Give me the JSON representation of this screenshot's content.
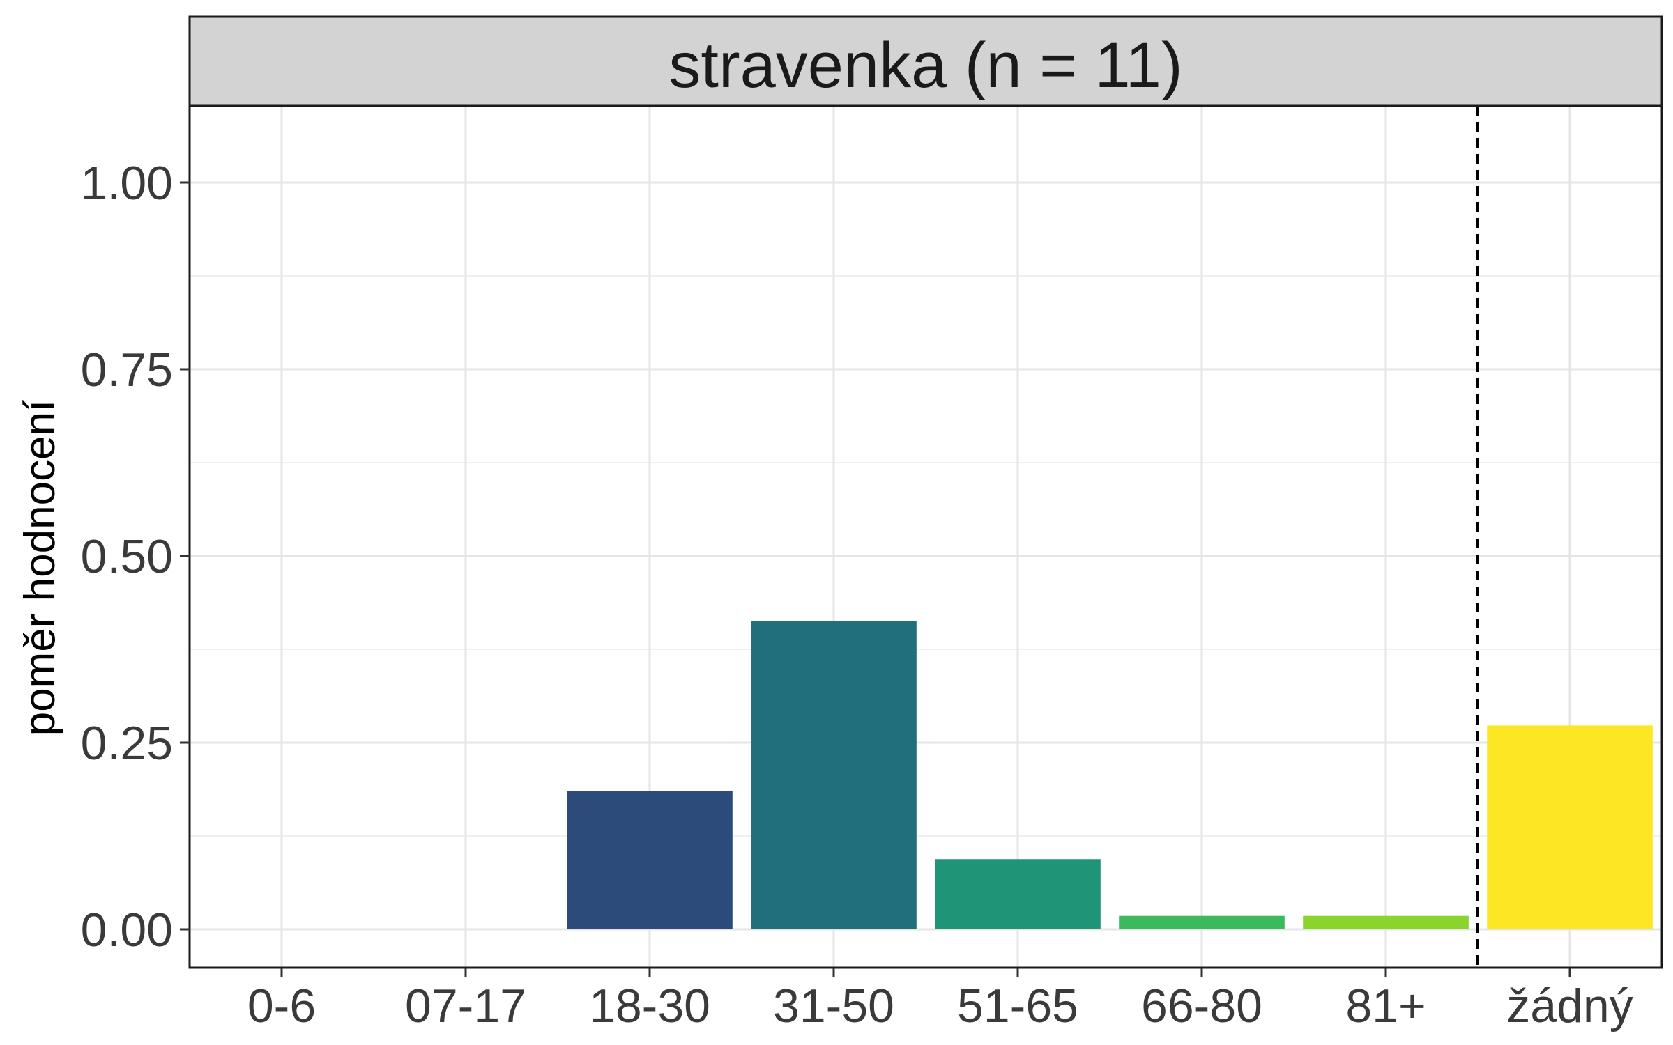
{
  "chart_data": {
    "type": "bar",
    "title": "stravenka (n = 11)",
    "xlabel": "",
    "ylabel": "poměr hodnocení",
    "categories": [
      "0-6",
      "07-17",
      "18-30",
      "31-50",
      "51-65",
      "66-80",
      "81+",
      "žádný"
    ],
    "values": [
      0,
      0,
      0.185,
      0.413,
      0.094,
      0.018,
      0.018,
      0.273
    ],
    "colors": [
      "#440154",
      "#46337e",
      "#2c4a7a",
      "#216e7c",
      "#209477",
      "#3aba5d",
      "#8ad42e",
      "#fde725"
    ],
    "ylim": [
      0,
      1.1
    ],
    "yticks": [
      "0.00",
      "0.25",
      "0.50",
      "0.75",
      "1.00"
    ],
    "ytick_values": [
      0,
      0.25,
      0.5,
      0.75,
      1.0
    ],
    "grid": true,
    "legend": "none",
    "reference_line": {
      "after_category": "81+",
      "style": "dashed"
    }
  },
  "style": {
    "panel_border": "#1a1a1a",
    "strip_fill": "#d3d3d3",
    "grid_major": "#e5e5e5",
    "grid_minor": "#f0f0f0",
    "tick_color": "#333333"
  }
}
